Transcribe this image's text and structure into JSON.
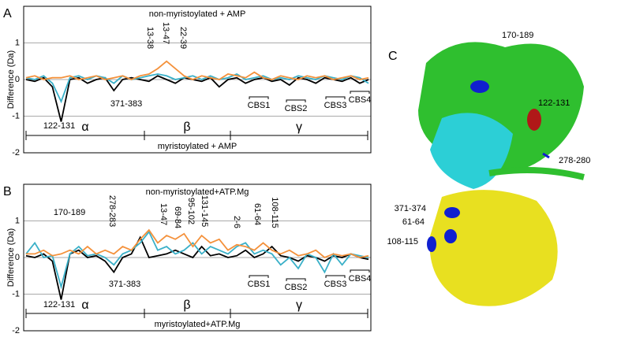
{
  "chart_data": [
    {
      "type": "line",
      "panel_label": "A",
      "title": "non-myristoylated + AMP",
      "subtitle": "myristoylated + AMP",
      "y_label": "Difference (Da)",
      "ylim": [
        -2,
        2
      ],
      "yticks": [
        1,
        0,
        -1,
        -2
      ],
      "grid": true,
      "series": [
        {
          "color": "#000000",
          "values": [
            0,
            -0.05,
            0.05,
            -0.2,
            -1.15,
            0,
            0.05,
            -0.1,
            0,
            0.05,
            -0.3,
            0,
            0.05,
            0,
            -0.05,
            0.1,
            0,
            -0.1,
            0.05,
            0,
            -0.05,
            0.05,
            -0.2,
            0,
            0.05,
            -0.1,
            0,
            0.05,
            -0.05,
            0,
            -0.15,
            0.05,
            0,
            -0.1,
            0.05,
            0,
            -0.05,
            0.05,
            -0.1,
            0
          ]
        },
        {
          "color": "#3ab0c8",
          "values": [
            0.05,
            0,
            0.1,
            -0.1,
            -0.6,
            0.05,
            0.1,
            0,
            0.1,
            0.05,
            -0.1,
            0.1,
            0,
            0.05,
            0.1,
            0.15,
            0.1,
            0,
            0.05,
            0.1,
            0,
            0.1,
            0,
            0.05,
            0.15,
            0,
            0.05,
            0.1,
            0,
            0.05,
            0,
            0.1,
            0.05,
            0,
            0.1,
            0.05,
            0,
            0.1,
            0.05,
            -0.1
          ]
        },
        {
          "color": "#f4913b",
          "values": [
            0.05,
            0.1,
            0,
            0.05,
            0.05,
            0.1,
            0,
            0.05,
            0.1,
            0,
            0.05,
            0.1,
            0,
            0.1,
            0.15,
            0.3,
            0.5,
            0.3,
            0.1,
            0,
            0.1,
            0.05,
            0,
            0.15,
            0.1,
            0.05,
            0.2,
            0.05,
            0,
            0.1,
            0.05,
            0,
            0.1,
            0.05,
            0.1,
            0,
            0.05,
            0.1,
            0,
            0.05
          ]
        }
      ],
      "domains": [
        "α",
        "β",
        "γ"
      ],
      "cbs": [
        "CBS1",
        "CBS2",
        "CBS3",
        "CBS4"
      ],
      "annotations": [
        "122-131",
        "371-383",
        "13-38",
        "13-47",
        "22-39"
      ]
    },
    {
      "type": "line",
      "panel_label": "B",
      "title": "non-myristoylated+ATP.Mg",
      "subtitle": "myristoylated+ATP.Mg",
      "y_label": "Difference (Da)",
      "ylim": [
        -2,
        2
      ],
      "yticks": [
        1,
        0,
        -1,
        -2
      ],
      "grid": true,
      "series": [
        {
          "color": "#000000",
          "values": [
            0.05,
            0,
            0.1,
            -0.1,
            -1.15,
            0.1,
            0.2,
            0,
            0.05,
            -0.1,
            -0.4,
            0,
            0.1,
            0.55,
            0,
            0.05,
            0.1,
            0.2,
            0.1,
            0,
            0.3,
            0.05,
            0.1,
            0,
            0.05,
            0.2,
            0,
            0.1,
            0.3,
            0.05,
            0,
            -0.1,
            0.05,
            0,
            -0.1,
            0.05,
            0,
            0.1,
            0,
            -0.05
          ]
        },
        {
          "color": "#3ab0c8",
          "values": [
            0.1,
            0.4,
            0,
            0.05,
            -0.8,
            0.1,
            0.3,
            0.05,
            0.1,
            0,
            -0.2,
            0.1,
            0.2,
            0.4,
            0.7,
            0.2,
            0.3,
            0.1,
            0.2,
            0.4,
            0.1,
            0.3,
            0.2,
            0.1,
            0.3,
            0.4,
            0.1,
            0.2,
            0.1,
            -0.2,
            0,
            -0.3,
            0.1,
            0,
            -0.4,
            0.1,
            -0.2,
            0.1,
            0.05,
            0
          ]
        },
        {
          "color": "#f4913b",
          "values": [
            0.1,
            0.1,
            0.2,
            0.05,
            0.1,
            0.2,
            0.1,
            0.3,
            0.1,
            0.2,
            0.1,
            0.3,
            0.2,
            0.5,
            0.75,
            0.4,
            0.6,
            0.5,
            0.65,
            0.3,
            0.6,
            0.4,
            0.5,
            0.2,
            0.35,
            0.3,
            0.2,
            0.4,
            0.2,
            0.1,
            0.2,
            0.05,
            0.1,
            0.2,
            0,
            0.1,
            0.05,
            0.1,
            0,
            0.05
          ]
        }
      ],
      "domains": [
        "α",
        "β",
        "γ"
      ],
      "cbs": [
        "CBS1",
        "CBS2",
        "CBS3",
        "CBS4"
      ],
      "annotations": [
        "122-131",
        "170-189",
        "278-283",
        "371-383",
        "13-47",
        "69-84",
        "95-102",
        "131-145",
        "2-6",
        "61-64",
        "108-115"
      ]
    }
  ],
  "structure": {
    "panel_label": "C",
    "labels": [
      "170-189",
      "122-131",
      "278-280",
      "371-374",
      "61-64",
      "108-115"
    ]
  }
}
